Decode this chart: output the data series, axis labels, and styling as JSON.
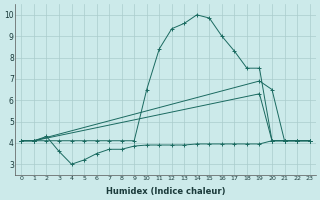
{
  "xlabel": "Humidex (Indice chaleur)",
  "background_color": "#cceaea",
  "grid_color": "#aacccc",
  "line_color": "#1a6a60",
  "xlim": [
    -0.5,
    23.5
  ],
  "ylim": [
    2.5,
    10.5
  ],
  "xticks": [
    0,
    1,
    2,
    3,
    4,
    5,
    6,
    7,
    8,
    9,
    10,
    11,
    12,
    13,
    14,
    15,
    16,
    17,
    18,
    19,
    20,
    21,
    22,
    23
  ],
  "yticks": [
    3,
    4,
    5,
    6,
    7,
    8,
    9,
    10
  ],
  "series_spiky_x": [
    0,
    1,
    2,
    3,
    4,
    5,
    6,
    7,
    8,
    9,
    10,
    11,
    12,
    13,
    14,
    15,
    16,
    17,
    18,
    19,
    20,
    21,
    22,
    23
  ],
  "series_spiky_y": [
    4.1,
    4.1,
    4.3,
    3.6,
    3.0,
    3.2,
    3.5,
    3.7,
    3.7,
    3.85,
    3.9,
    3.9,
    3.9,
    3.9,
    3.95,
    3.95,
    3.95,
    3.95,
    3.95,
    3.95,
    4.1,
    4.1,
    4.1,
    4.1
  ],
  "series_diag1_x": [
    0,
    1,
    19,
    20,
    21,
    22,
    23
  ],
  "series_diag1_y": [
    4.1,
    4.1,
    6.3,
    4.1,
    4.1,
    4.1,
    4.1
  ],
  "series_diag2_x": [
    0,
    1,
    19,
    20,
    21,
    22,
    23
  ],
  "series_diag2_y": [
    4.1,
    4.1,
    6.9,
    6.5,
    4.1,
    4.1,
    4.1
  ],
  "series_peak_x": [
    0,
    1,
    2,
    3,
    4,
    5,
    6,
    7,
    8,
    9,
    10,
    11,
    12,
    13,
    14,
    15,
    16,
    17,
    18,
    19,
    20,
    21,
    22,
    23
  ],
  "series_peak_y": [
    4.1,
    4.1,
    4.1,
    4.1,
    4.1,
    4.1,
    4.1,
    4.1,
    4.1,
    4.1,
    6.5,
    8.4,
    9.35,
    9.6,
    10.0,
    9.85,
    9.0,
    8.3,
    7.5,
    7.5,
    4.1,
    4.1,
    4.1,
    4.1
  ]
}
